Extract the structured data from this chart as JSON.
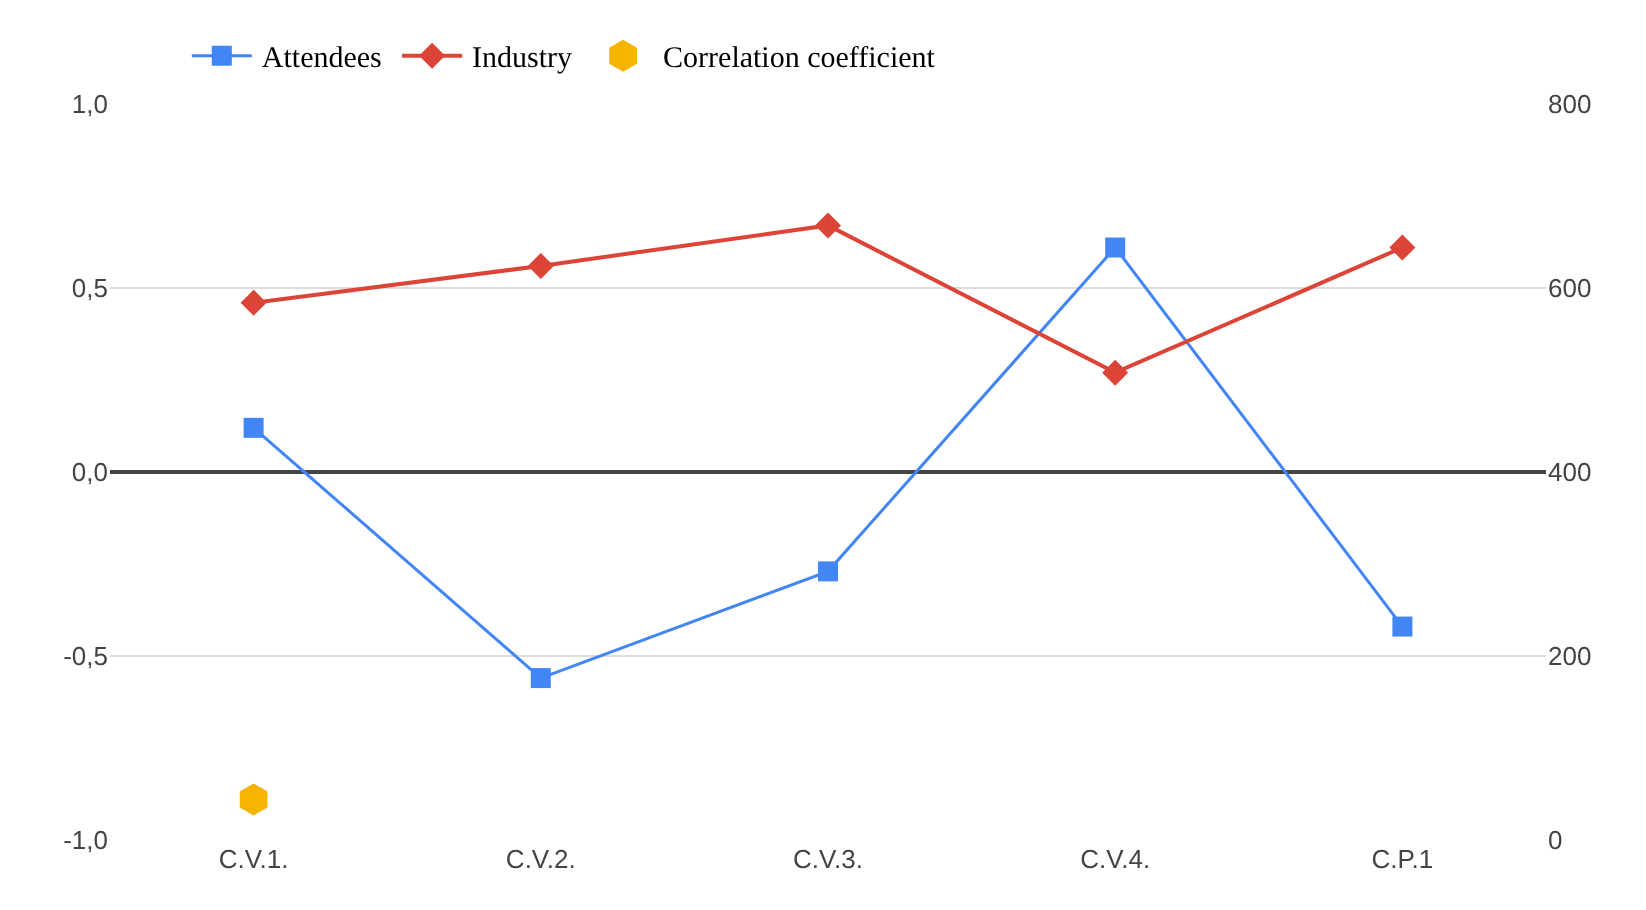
{
  "chart_data": {
    "type": "line",
    "categories": [
      "C.V.1.",
      "C.V.2.",
      "C.V.3.",
      "C.V.4.",
      "C.P.1"
    ],
    "series": [
      {
        "name": "Attendees",
        "color": "#4285f4",
        "marker": "square",
        "values": [
          0.12,
          -0.56,
          -0.27,
          0.61,
          -0.42
        ]
      },
      {
        "name": "Industry",
        "color": "#db4437",
        "marker": "diamond",
        "values": [
          0.46,
          0.56,
          0.67,
          0.27,
          0.61
        ]
      },
      {
        "name": "Correlation coefficient",
        "type": "scatter",
        "color": "#f4b400",
        "values": [
          -0.89,
          null,
          null,
          null,
          null
        ]
      }
    ],
    "ylim": [
      -1.0,
      1.0
    ],
    "yticks": [
      {
        "value": -1.0,
        "label": "-1,0"
      },
      {
        "value": -0.5,
        "label": "-0,5"
      },
      {
        "value": 0.0,
        "label": "0,0"
      },
      {
        "value": 0.5,
        "label": "0,5"
      },
      {
        "value": 1.0,
        "label": "1,0"
      }
    ],
    "y2lim": [
      0,
      800
    ],
    "y2ticks": [
      0,
      200,
      400,
      600,
      800
    ],
    "grid": "y",
    "legend": "top"
  }
}
